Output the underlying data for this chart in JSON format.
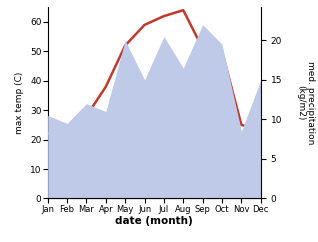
{
  "months": [
    "Jan",
    "Feb",
    "Mar",
    "Apr",
    "May",
    "Jun",
    "Jul",
    "Aug",
    "Sep",
    "Oct",
    "Nov",
    "Dec"
  ],
  "temperature": [
    22,
    23,
    28,
    38,
    52,
    59,
    62,
    64,
    51,
    50,
    25,
    23
  ],
  "precipitation": [
    10.5,
    9.5,
    12,
    11,
    20,
    15,
    20.5,
    16.5,
    22,
    19.5,
    8.5,
    15
  ],
  "temp_color": "#c0392b",
  "precip_color_fill": "#bfc9e8",
  "temp_ylim": [
    0,
    65
  ],
  "precip_ylim": [
    0,
    24.2
  ],
  "temp_yticks": [
    0,
    10,
    20,
    30,
    40,
    50,
    60
  ],
  "precip_yticks": [
    0,
    5,
    10,
    15,
    20
  ],
  "xlabel": "date (month)",
  "ylabel_left": "max temp (C)",
  "ylabel_right": "med. precipitation\n(kg/m2)",
  "background_color": "#ffffff"
}
